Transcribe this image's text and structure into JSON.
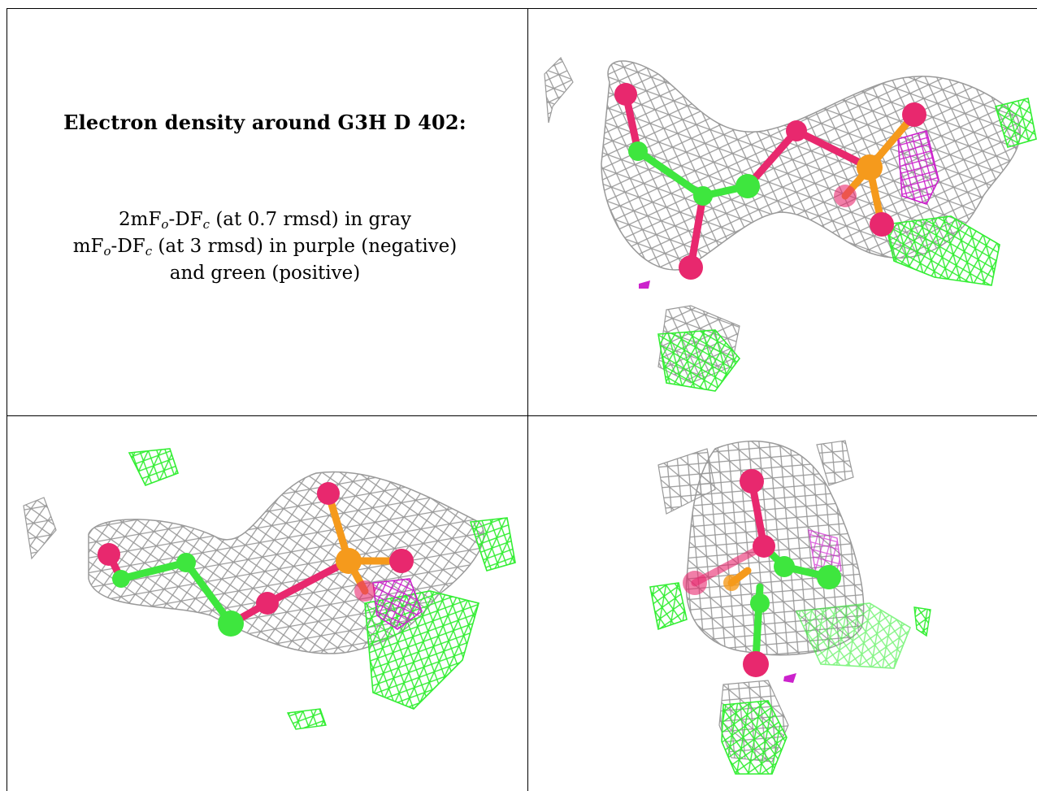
{
  "caption": {
    "title": "Electron density around G3H D 402:",
    "line1": {
      "a": "2mF",
      "a_sub": "o",
      "b": "-DF",
      "b_sub": "c",
      "c": " (at 0.7 rmsd) in gray"
    },
    "line2": {
      "a": "mF",
      "a_sub": "o",
      "b": "-DF",
      "b_sub": "c",
      "c": " (at 3 rmsd) in purple (negative)"
    },
    "line3": "and green (positive)"
  },
  "colors": {
    "mesh_2fofc": "#9a9a9a",
    "mesh_negative": "#cc22cc",
    "mesh_positive": "#33ee33",
    "atom_oxygen": "#e8286e",
    "atom_carbon": "#3ee63e",
    "atom_phosphorus": "#f59a1c",
    "frame": "#000000",
    "background": "#ffffff"
  }
}
